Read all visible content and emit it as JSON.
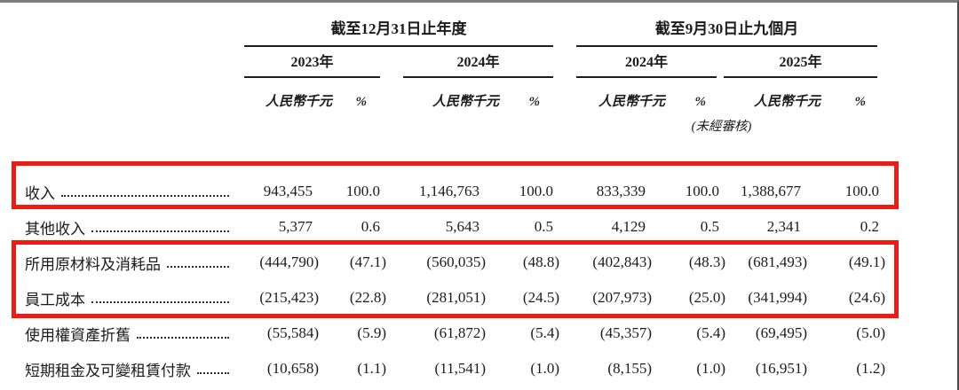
{
  "header": {
    "groups": [
      {
        "title": "截至12月31日止年度",
        "years": [
          {
            "label": "2023年"
          },
          {
            "label": "2024年"
          }
        ]
      },
      {
        "title": "截至9月30日止九個月",
        "years": [
          {
            "label": "2024年"
          },
          {
            "label": "2025年"
          }
        ],
        "note": "(未經審核)"
      }
    ],
    "unit_label": "人民幣千元",
    "percent_label": "%"
  },
  "table": {
    "rows": [
      {
        "label": "收入",
        "highlight": "revenue",
        "values": [
          "943,455",
          "100.0",
          "1,146,763",
          "100.0",
          "833,339",
          "100.0",
          "1,388,677",
          "100.0"
        ]
      },
      {
        "label": "其他收入",
        "highlight": null,
        "values": [
          "5,377",
          "0.6",
          "5,643",
          "0.5",
          "4,129",
          "0.5",
          "2,341",
          "0.2"
        ]
      },
      {
        "label": "所用原材料及消耗品",
        "highlight": "costs",
        "values": [
          "(444,790)",
          "(47.1)",
          "(560,035)",
          "(48.8)",
          "(402,843)",
          "(48.3)",
          "(681,493)",
          "(49.1)"
        ]
      },
      {
        "label": "員工成本",
        "highlight": "costs",
        "values": [
          "(215,423)",
          "(22.8)",
          "(281,051)",
          "(24.5)",
          "(207,973)",
          "(25.0)",
          "(341,994)",
          "(24.6)"
        ]
      },
      {
        "label": "使用權資產折舊",
        "highlight": null,
        "values": [
          "(55,584)",
          "(5.9)",
          "(61,872)",
          "(5.4)",
          "(45,357)",
          "(5.4)",
          "(69,495)",
          "(5.0)"
        ]
      },
      {
        "label": "短期租金及可變租賃付款",
        "highlight": null,
        "values": [
          "(10,658)",
          "(1.1)",
          "(11,541)",
          "(1.0)",
          "(8,155)",
          "(1.0)",
          "(16,951)",
          "(1.2)"
        ]
      }
    ]
  },
  "colors": {
    "highlight_box": "#ee1b12",
    "text": "#1b1b1b",
    "rule": "#1e1e1e"
  }
}
